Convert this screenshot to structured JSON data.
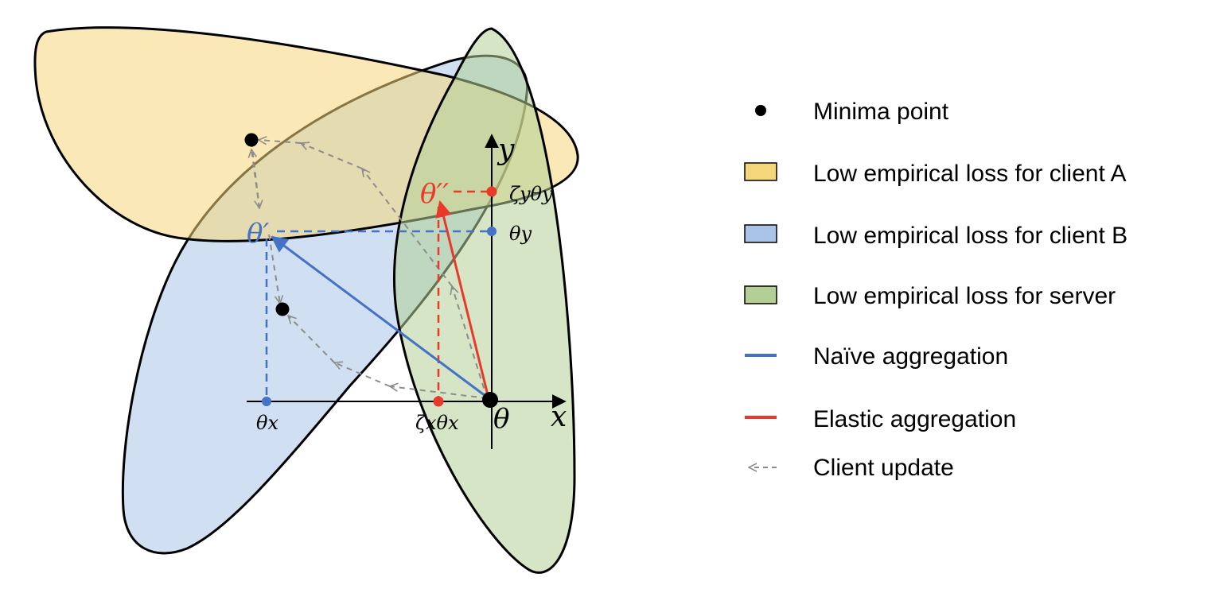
{
  "colors": {
    "client_a_fill": "#f5d77b",
    "client_b_fill": "#a9c4e6",
    "server_fill": "#b3cf95",
    "naive": "#4472c4",
    "elastic": "#e8392b",
    "client_update": "#8c8c8c",
    "outline": "#000000",
    "minima": "#000000"
  },
  "axes": {
    "x_label": "x",
    "y_label": "y",
    "origin_label": "θ"
  },
  "labels": {
    "theta_prime": "θ′",
    "theta_double_prime": "θ′′",
    "theta_x": "θx",
    "theta_y": "θy",
    "zeta_x_theta_x": "ζxθx",
    "zeta_y_theta_y": "ζyθy"
  },
  "legend": {
    "items": [
      {
        "icon": "dot-icon",
        "label": "Minima point"
      },
      {
        "icon": "yellow-swatch-icon",
        "label": "Low empirical loss for client A"
      },
      {
        "icon": "blue-swatch-icon",
        "label": "Low empirical loss for client B"
      },
      {
        "icon": "green-swatch-icon",
        "label": "Low empirical loss for server"
      },
      {
        "icon": "blue-line-icon",
        "label": "Naïve aggregation"
      },
      {
        "icon": "red-line-icon",
        "label": "Elastic aggregation"
      },
      {
        "icon": "dashed-arrow-icon",
        "label": "Client update"
      }
    ]
  }
}
